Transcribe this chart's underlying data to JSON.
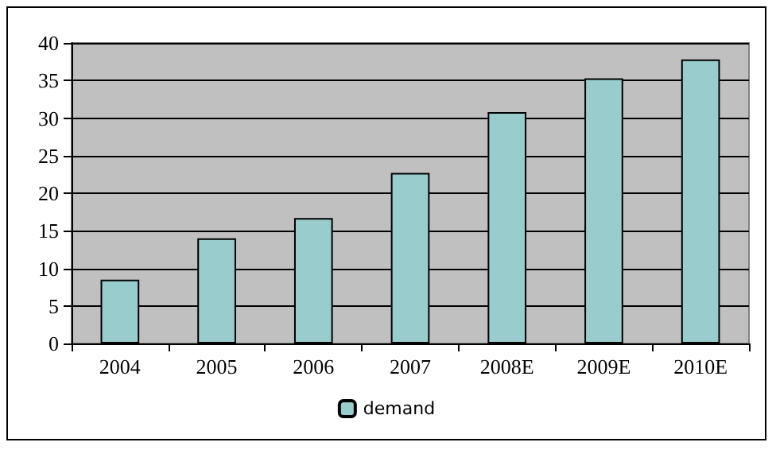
{
  "chart_data": {
    "type": "bar",
    "categories": [
      "2004",
      "2005",
      "2006",
      "2007",
      "2008E",
      "2009E",
      "2010E"
    ],
    "series": [
      {
        "name": "demand",
        "color": "#99cccc",
        "values": [
          8.5,
          14.0,
          16.7,
          22.7,
          30.8,
          35.3,
          37.8
        ]
      }
    ],
    "ylim": [
      0,
      40
    ],
    "yticks": [
      0,
      5,
      10,
      15,
      20,
      25,
      30,
      35,
      40
    ],
    "grid": "y",
    "legend": "bottom"
  }
}
